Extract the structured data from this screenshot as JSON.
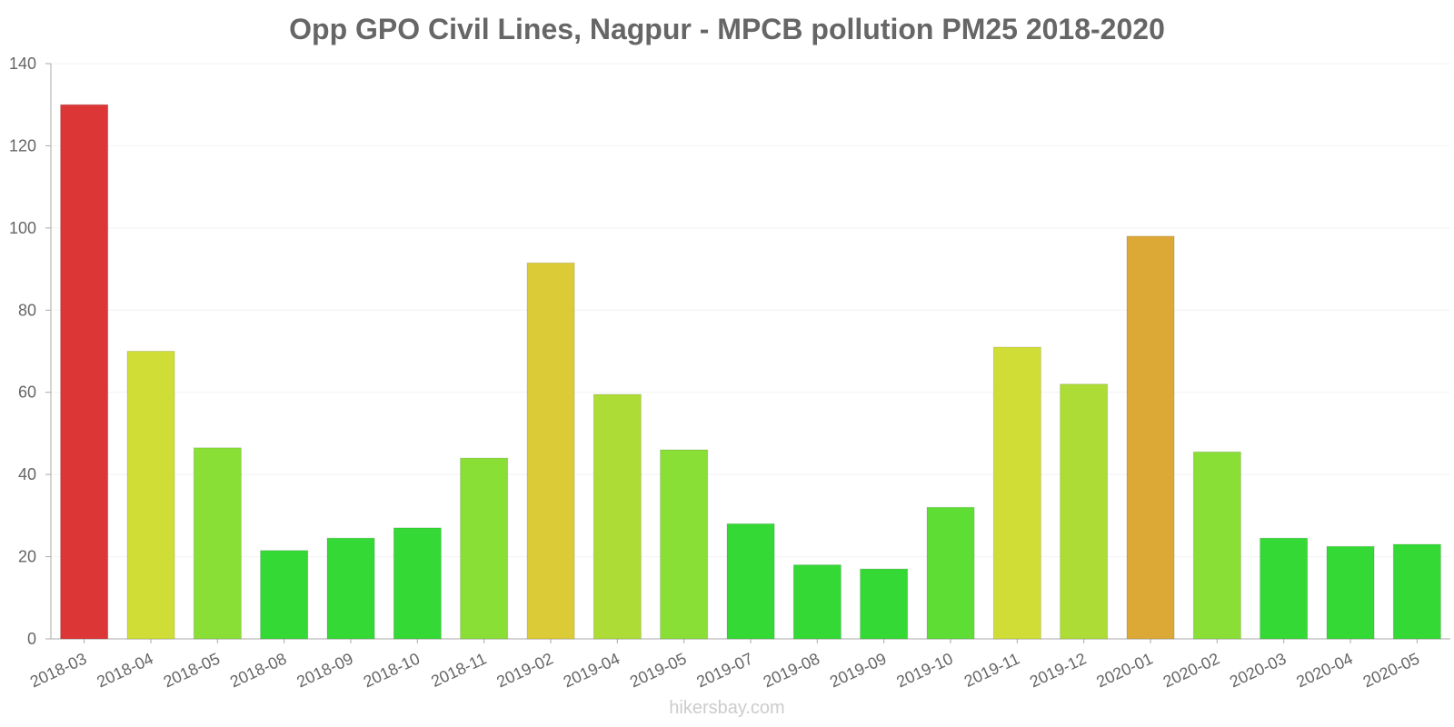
{
  "chart_data": {
    "type": "bar",
    "title": "Opp GPO Civil Lines, Nagpur - MPCB pollution PM25 2018-2020",
    "xlabel": "",
    "ylabel": "",
    "ylim": [
      0,
      140
    ],
    "yticks": [
      0,
      20,
      40,
      60,
      80,
      100,
      120,
      140
    ],
    "grid": true,
    "categories": [
      "2018-03",
      "2018-04",
      "2018-05",
      "2018-08",
      "2018-09",
      "2018-10",
      "2018-11",
      "2019-02",
      "2019-04",
      "2019-05",
      "2019-07",
      "2019-08",
      "2019-09",
      "2019-10",
      "2019-11",
      "2019-12",
      "2020-01",
      "2020-02",
      "2020-03",
      "2020-04",
      "2020-05"
    ],
    "values": [
      130,
      70,
      46.5,
      21.5,
      24.5,
      27,
      44,
      91.5,
      59.5,
      46,
      28,
      18,
      17,
      32,
      71,
      62,
      98,
      45.5,
      24.5,
      22.5,
      23
    ],
    "colors": [
      "#dc3636",
      "#cfdd36",
      "#89df36",
      "#35d935",
      "#35d935",
      "#35d935",
      "#89df36",
      "#dbcb36",
      "#aedc36",
      "#89df36",
      "#35d935",
      "#35d935",
      "#35d935",
      "#5ede35",
      "#cfdd36",
      "#aedc36",
      "#dca936",
      "#89df36",
      "#35d935",
      "#35d935",
      "#35d935"
    ]
  },
  "watermark": "hikersbay.com"
}
